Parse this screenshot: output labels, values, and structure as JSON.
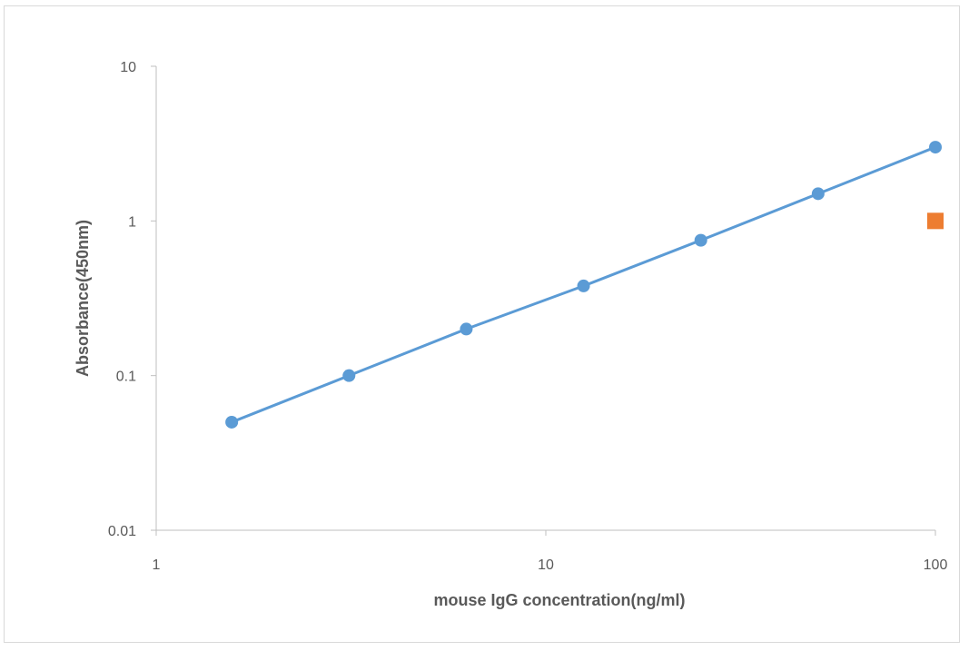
{
  "chart_data": {
    "type": "scatter",
    "title": "",
    "xlabel": "mouse IgG concentration(ng/ml)",
    "ylabel": "Absorbance(450nm)",
    "x_scale": "log",
    "y_scale": "log",
    "xlim": [
      1,
      100
    ],
    "ylim": [
      0.01,
      10
    ],
    "x_ticks": [
      1,
      10,
      100
    ],
    "x_tick_labels": [
      "1",
      "10",
      "100"
    ],
    "y_ticks": [
      0.01,
      0.1,
      1,
      10
    ],
    "y_tick_labels": [
      "0.01",
      "0.1",
      "1",
      "10"
    ],
    "grid": false,
    "legend": "none",
    "series": [
      {
        "marker": "circle",
        "line": true,
        "color": "#5b9bd5",
        "x": [
          1.5625,
          3.125,
          6.25,
          12.5,
          25,
          50,
          100
        ],
        "y": [
          0.05,
          0.1,
          0.2,
          0.38,
          0.75,
          1.5,
          3.0
        ]
      },
      {
        "marker": "square",
        "line": false,
        "color": "#ed7d31",
        "x": [
          100
        ],
        "y": [
          1.0
        ]
      }
    ]
  }
}
